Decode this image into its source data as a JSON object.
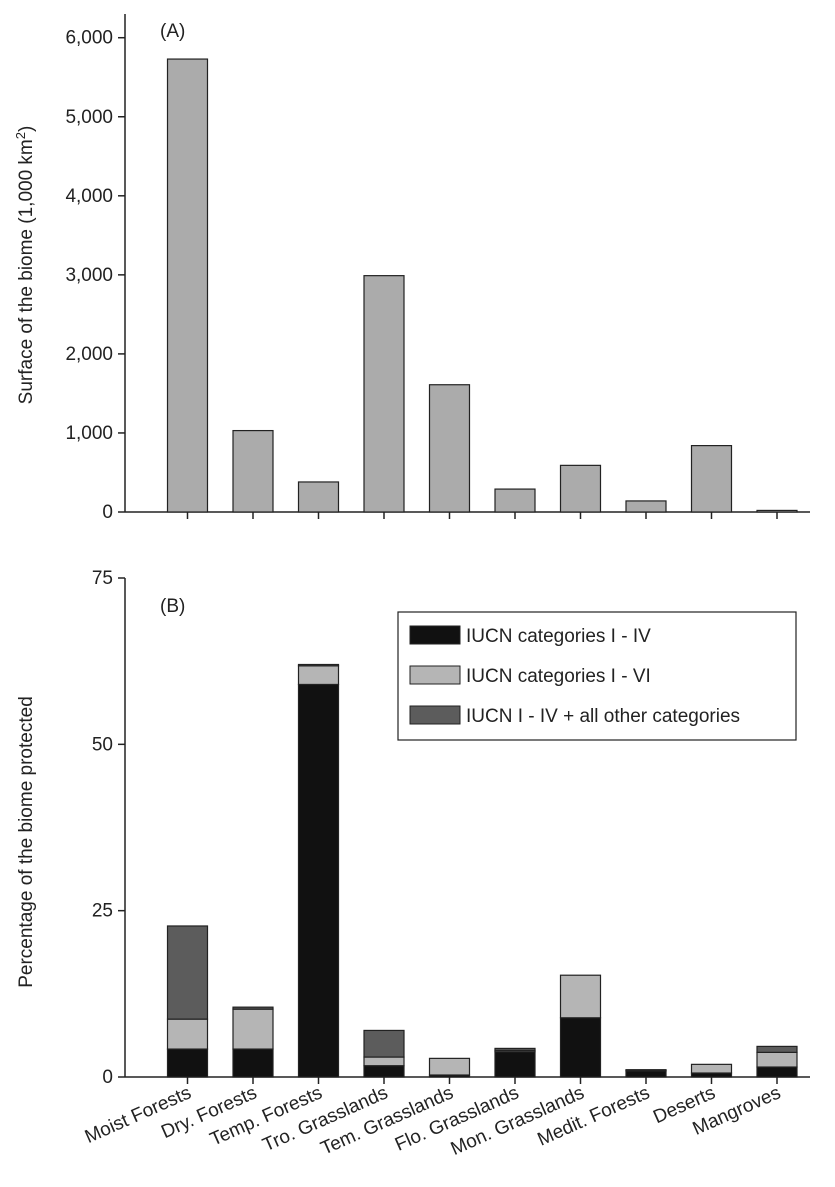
{
  "chart_data": [
    {
      "type": "bar",
      "panel_label": "(A)",
      "ylabel": "Surface of the biome (1,000 km",
      "ylabel_sup": "2",
      "ylabel_close": ")",
      "ylim": [
        0,
        6300
      ],
      "yticks": [
        "0",
        "1,000",
        "2,000",
        "3,000",
        "4,000",
        "5,000",
        "6,000"
      ],
      "ytick_values": [
        0,
        1000,
        2000,
        3000,
        4000,
        5000,
        6000
      ],
      "categories": [
        "Moist Forests",
        "Dry. Forests",
        "Temp. Forests",
        "Tro. Grasslands",
        "Tem. Grasslands",
        "Flo. Grasslands",
        "Mon. Grasslands",
        "Medit. Forests",
        "Deserts",
        "Mangroves"
      ],
      "values": [
        5730,
        1030,
        380,
        2990,
        1610,
        290,
        590,
        140,
        840,
        20
      ],
      "color": "#ababab",
      "grid": false
    },
    {
      "type": "bar",
      "stacked": true,
      "panel_label": "(B)",
      "ylabel": "Percentage of the biome protected",
      "ylim": [
        0,
        75
      ],
      "yticks": [
        "0",
        "25",
        "50",
        "75"
      ],
      "ytick_values": [
        0,
        25,
        50,
        75
      ],
      "categories": [
        "Moist Forests",
        "Dry. Forests",
        "Temp. Forests",
        "Tro. Grasslands",
        "Tem. Grasslands",
        "Flo. Grasslands",
        "Mon. Grasslands",
        "Medit. Forests",
        "Deserts",
        "Mangroves"
      ],
      "series": [
        {
          "name": "IUCN categories I - IV",
          "color": "#111111",
          "values": [
            4.2,
            4.2,
            59,
            1.7,
            0.3,
            3.8,
            8.9,
            0.9,
            0.6,
            1.5
          ]
        },
        {
          "name": "IUCN categories I - VI",
          "color": "#b5b5b5",
          "values": [
            4.5,
            6.0,
            2.8,
            1.3,
            2.5,
            0.2,
            6.4,
            0.1,
            1.3,
            2.2
          ]
        },
        {
          "name": "IUCN I - IV + all other categories",
          "color": "#5c5c5c",
          "values": [
            14.0,
            0.3,
            0.2,
            4.0,
            0.0,
            0.3,
            0.0,
            0.1,
            0.0,
            0.9
          ]
        }
      ],
      "legend_position": "top-right",
      "grid": false
    }
  ]
}
